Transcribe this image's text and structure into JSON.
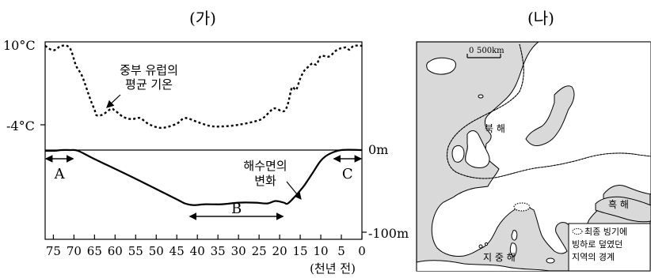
{
  "panel_ga": {
    "label": "(가)",
    "y_axis_top_label": "10°C",
    "y_axis_mid_label": "-4°C",
    "right_axis_top_label": "0m",
    "right_axis_bottom_label": "-100m",
    "temperature_curve_label_line1": "중부 유럽의",
    "temperature_curve_label_line2": "평균 기온",
    "sea_level_curve_label_line1": "해수면의",
    "sea_level_curve_label_line2": "변화",
    "period_a": "A",
    "period_b": "B",
    "period_c": "C",
    "x_axis_unit": "(천년 전)",
    "x_ticks": [
      "75",
      "70",
      "65",
      "60",
      "55",
      "50",
      "45",
      "40",
      "35",
      "30",
      "25",
      "20",
      "15",
      "10",
      "5",
      "0"
    ]
  },
  "panel_na": {
    "label": "(나)",
    "scale_zero": "0",
    "scale_value": "500km",
    "north_sea": "북 해",
    "black_sea": "흑 해",
    "mediterranean": "지 중 해",
    "legend_line1": "최종 빙기에",
    "legend_line2": "빙하로 덮였던",
    "legend_line3": "지역의 경계"
  },
  "chart_data": {
    "type": "line",
    "x_unit": "thousand years ago",
    "x_range": [
      75,
      0
    ],
    "series": [
      {
        "name": "중부 유럽의 평균 기온",
        "unit": "°C",
        "points": [
          [
            77,
            10
          ],
          [
            75,
            9.2
          ],
          [
            73,
            10
          ],
          [
            71,
            9.6
          ],
          [
            69.5,
            6.5
          ],
          [
            68,
            4.6
          ],
          [
            66,
            0.5
          ],
          [
            65,
            -1.3
          ],
          [
            64.5,
            -2.3
          ],
          [
            63,
            -2.2
          ],
          [
            61,
            -1.2
          ],
          [
            60,
            -1.5
          ],
          [
            58,
            -2.6
          ],
          [
            56,
            -3
          ],
          [
            54,
            -2.8
          ],
          [
            52,
            -3.8
          ],
          [
            50,
            -4.4
          ],
          [
            48,
            -4.5
          ],
          [
            45,
            -3.8
          ],
          [
            43,
            -2.8
          ],
          [
            40,
            -3.5
          ],
          [
            37,
            -4.2
          ],
          [
            34,
            -4.3
          ],
          [
            30,
            -4
          ],
          [
            26,
            -3.4
          ],
          [
            24,
            -2.8
          ],
          [
            22,
            -1.4
          ],
          [
            21,
            -1.1
          ],
          [
            19,
            -1.6
          ],
          [
            18,
            -0.3
          ],
          [
            17,
            2.6
          ],
          [
            16,
            2.2
          ],
          [
            15,
            4.2
          ],
          [
            14,
            5.6
          ],
          [
            13,
            6.3
          ],
          [
            12,
            6.9
          ],
          [
            11,
            6.7
          ],
          [
            10,
            8.2
          ],
          [
            8,
            8.1
          ],
          [
            6,
            9.3
          ],
          [
            4,
            9.7
          ],
          [
            3,
            9.3
          ],
          [
            2,
            10
          ],
          [
            0,
            10
          ]
        ]
      },
      {
        "name": "해수면의 변화",
        "unit": "m",
        "points": [
          [
            77,
            -1
          ],
          [
            75,
            -1
          ],
          [
            73,
            0
          ],
          [
            71,
            0
          ],
          [
            69,
            -1
          ],
          [
            65,
            -11
          ],
          [
            55,
            -35
          ],
          [
            45,
            -60
          ],
          [
            43,
            -65
          ],
          [
            41,
            -67
          ],
          [
            38,
            -66
          ],
          [
            34,
            -66
          ],
          [
            30,
            -64
          ],
          [
            26,
            -64
          ],
          [
            23,
            -65
          ],
          [
            21,
            -62
          ],
          [
            19,
            -64
          ],
          [
            18,
            -65
          ],
          [
            16,
            -55
          ],
          [
            14,
            -43
          ],
          [
            12,
            -28
          ],
          [
            10,
            -13
          ],
          [
            8,
            -5
          ],
          [
            5,
            0
          ],
          [
            0,
            0
          ]
        ]
      }
    ],
    "periods": [
      {
        "name": "A",
        "from": 77,
        "to": 70
      },
      {
        "name": "B",
        "from": 42,
        "to": 19
      },
      {
        "name": "C",
        "from": 7,
        "to": 0
      }
    ]
  }
}
